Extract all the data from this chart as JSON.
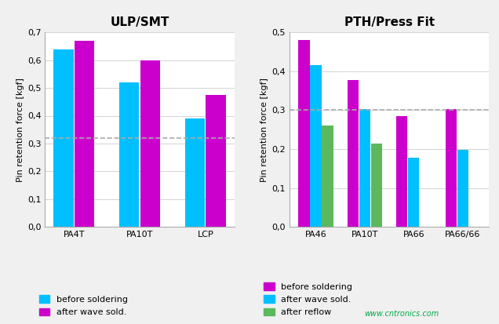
{
  "left": {
    "title": "ULP/SMT",
    "categories": [
      "PA4T",
      "PA10T",
      "LCP"
    ],
    "series": {
      "before soldering": [
        0.64,
        0.52,
        0.39
      ],
      "after wave sold.": [
        0.67,
        0.6,
        0.475
      ]
    },
    "colors": {
      "before soldering": "#00BFFF",
      "after wave sold.": "#CC00CC"
    },
    "ylabel": "Pin retention force [kgf]",
    "ylim": [
      0,
      0.7
    ],
    "yticks": [
      0.0,
      0.1,
      0.2,
      0.3,
      0.4,
      0.5,
      0.6,
      0.7
    ],
    "ytick_labels": [
      "0,0",
      "0,1",
      "0,2",
      "0,3",
      "0,4",
      "0,5",
      "0,6",
      "0,7"
    ],
    "dashed_line": 0.32
  },
  "right": {
    "title": "PTH/Press Fit",
    "categories": [
      "PA46",
      "PA10T",
      "PA66",
      "PA66/66"
    ],
    "series": {
      "before soldering": [
        0.48,
        0.378,
        0.285,
        0.302
      ],
      "after wave sold.": [
        0.415,
        0.302,
        0.177,
        0.198
      ],
      "after reflow": [
        0.26,
        0.215,
        null,
        null
      ]
    },
    "colors": {
      "before soldering": "#CC00CC",
      "after wave sold.": "#00BFFF",
      "after reflow": "#5CB85C"
    },
    "ylabel": "Pin retention force [kgf]",
    "ylim": [
      0,
      0.5
    ],
    "yticks": [
      0.0,
      0.1,
      0.2,
      0.3,
      0.4,
      0.5
    ],
    "ytick_labels": [
      "0,0",
      "0,1",
      "0,2",
      "0,3",
      "0,4",
      "0,5"
    ],
    "dashed_line": 0.3
  },
  "fig_bg": "#F0F0F0",
  "plot_bg": "#FFFFFF",
  "watermark": "www.cntronics.com",
  "watermark_color": "#00AA44"
}
